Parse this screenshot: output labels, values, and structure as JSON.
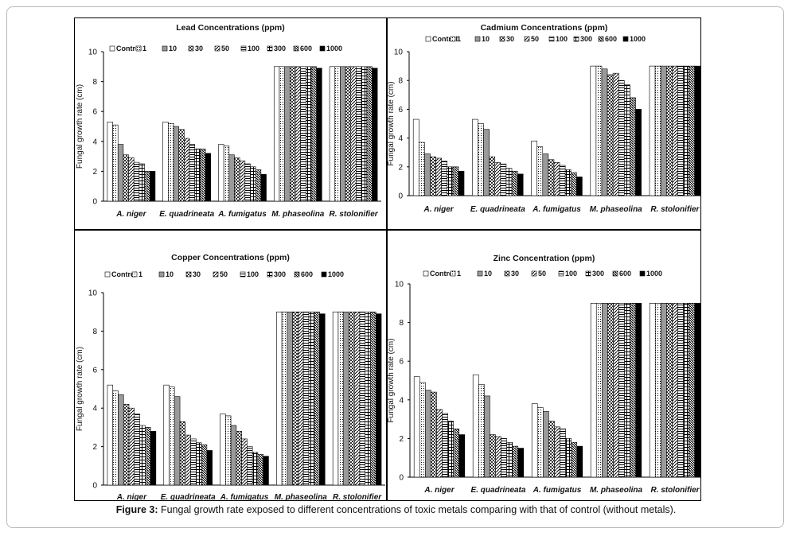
{
  "legend_keys": [
    "Control",
    "1",
    "10",
    "30",
    "50",
    "100",
    "300",
    "600",
    "1000"
  ],
  "caption": {
    "label": "Figure 3:",
    "text": " Fungal growth rate exposed to different concentrations of toxic metals comparing with that of control (without metals)."
  },
  "chart_data": [
    {
      "type": "bar",
      "title": "Lead Concentrations (ppm)",
      "ylabel": "Fungal growth rate (cm)",
      "ylim": [
        0,
        10
      ],
      "yticks": [
        0,
        2,
        4,
        6,
        8,
        10
      ],
      "grid": false,
      "legend": "top",
      "categories": [
        "A. niger",
        "E. quadrineata",
        "A. fumigatus",
        "M. phaseolina",
        "R. stolonifier"
      ],
      "series": [
        {
          "name": "Control",
          "values": [
            5.3,
            5.3,
            3.8,
            9.0,
            9.0
          ]
        },
        {
          "name": "1",
          "values": [
            5.1,
            5.2,
            3.7,
            9.0,
            9.0
          ]
        },
        {
          "name": "10",
          "values": [
            3.8,
            5.0,
            3.1,
            9.0,
            9.0
          ]
        },
        {
          "name": "30",
          "values": [
            3.1,
            4.8,
            2.9,
            9.0,
            9.0
          ]
        },
        {
          "name": "50",
          "values": [
            2.9,
            4.2,
            2.7,
            9.0,
            9.0
          ]
        },
        {
          "name": "100",
          "values": [
            2.6,
            3.8,
            2.5,
            9.0,
            9.0
          ]
        },
        {
          "name": "300",
          "values": [
            2.5,
            3.5,
            2.3,
            9.0,
            9.0
          ]
        },
        {
          "name": "600",
          "values": [
            2.0,
            3.5,
            2.1,
            9.0,
            9.0
          ]
        },
        {
          "name": "1000",
          "values": [
            2.0,
            3.2,
            1.8,
            8.9,
            8.9
          ]
        }
      ]
    },
    {
      "type": "bar",
      "title": "Cadmium Concentrations (ppm)",
      "ylabel": "Fungal growth rate (cm)",
      "ylim": [
        0,
        10
      ],
      "yticks": [
        0,
        2,
        4,
        6,
        8,
        10
      ],
      "grid": false,
      "legend": "top",
      "categories": [
        "A. niger",
        "E. quadrineata",
        "A. fumigatus",
        "M. phaseolina",
        "R. stolonifier"
      ],
      "series": [
        {
          "name": "Control",
          "values": [
            5.3,
            5.3,
            3.8,
            9.0,
            9.0
          ]
        },
        {
          "name": "1",
          "values": [
            3.7,
            5.0,
            3.4,
            9.0,
            9.0
          ]
        },
        {
          "name": "10",
          "values": [
            2.9,
            4.6,
            2.9,
            8.8,
            9.0
          ]
        },
        {
          "name": "30",
          "values": [
            2.7,
            2.7,
            2.5,
            8.4,
            9.0
          ]
        },
        {
          "name": "50",
          "values": [
            2.6,
            2.3,
            2.3,
            8.5,
            9.0
          ]
        },
        {
          "name": "100",
          "values": [
            2.4,
            2.2,
            2.1,
            8.0,
            9.0
          ]
        },
        {
          "name": "300",
          "values": [
            2.0,
            1.9,
            1.8,
            7.7,
            9.0
          ]
        },
        {
          "name": "600",
          "values": [
            2.0,
            1.7,
            1.6,
            6.8,
            9.0
          ]
        },
        {
          "name": "1000",
          "values": [
            1.7,
            1.5,
            1.3,
            6.0,
            9.0
          ]
        }
      ]
    },
    {
      "type": "bar",
      "title": "Copper Concentrations (ppm)",
      "ylabel": "Fungal growth rate (cm)",
      "ylim": [
        0,
        10
      ],
      "yticks": [
        0,
        2,
        4,
        6,
        8,
        10
      ],
      "grid": false,
      "legend": "top",
      "categories": [
        "A. niger",
        "E. quadrineata",
        "A. fumigatus",
        "M. phaseolina",
        "R. stolonifier"
      ],
      "series": [
        {
          "name": "Control",
          "values": [
            5.2,
            5.2,
            3.7,
            9.0,
            9.0
          ]
        },
        {
          "name": "1",
          "values": [
            4.9,
            5.1,
            3.6,
            9.0,
            9.0
          ]
        },
        {
          "name": "10",
          "values": [
            4.7,
            4.6,
            3.1,
            9.0,
            9.0
          ]
        },
        {
          "name": "30",
          "values": [
            4.2,
            3.3,
            2.8,
            9.0,
            9.0
          ]
        },
        {
          "name": "50",
          "values": [
            4.0,
            2.6,
            2.4,
            9.0,
            9.0
          ]
        },
        {
          "name": "100",
          "values": [
            3.7,
            2.4,
            2.0,
            9.0,
            9.0
          ]
        },
        {
          "name": "300",
          "values": [
            3.1,
            2.2,
            1.7,
            9.0,
            9.0
          ]
        },
        {
          "name": "600",
          "values": [
            3.0,
            2.1,
            1.6,
            9.0,
            9.0
          ]
        },
        {
          "name": "1000",
          "values": [
            2.8,
            1.8,
            1.5,
            8.9,
            8.9
          ]
        }
      ]
    },
    {
      "type": "bar",
      "title": "Zinc Concentration (ppm)",
      "ylabel": "Fungal growth rate (cm)",
      "ylim": [
        0,
        10
      ],
      "yticks": [
        0,
        2,
        4,
        6,
        8,
        10
      ],
      "grid": false,
      "legend": "top",
      "categories": [
        "A. niger",
        "E. quadrineata",
        "A. fumigatus",
        "M. phaseolina",
        "R. stolonifier"
      ],
      "series": [
        {
          "name": "Control",
          "values": [
            5.2,
            5.3,
            3.8,
            9.0,
            9.0
          ]
        },
        {
          "name": "1",
          "values": [
            4.9,
            4.8,
            3.6,
            9.0,
            9.0
          ]
        },
        {
          "name": "10",
          "values": [
            4.5,
            4.2,
            3.4,
            9.0,
            9.0
          ]
        },
        {
          "name": "30",
          "values": [
            4.4,
            2.2,
            2.9,
            9.0,
            9.0
          ]
        },
        {
          "name": "50",
          "values": [
            3.5,
            2.1,
            2.6,
            9.0,
            9.0
          ]
        },
        {
          "name": "100",
          "values": [
            3.3,
            2.0,
            2.5,
            9.0,
            9.0
          ]
        },
        {
          "name": "300",
          "values": [
            2.9,
            1.8,
            2.0,
            9.0,
            9.0
          ]
        },
        {
          "name": "600",
          "values": [
            2.5,
            1.6,
            1.8,
            9.0,
            9.0
          ]
        },
        {
          "name": "1000",
          "values": [
            2.2,
            1.5,
            1.6,
            9.0,
            9.0
          ]
        }
      ]
    }
  ]
}
